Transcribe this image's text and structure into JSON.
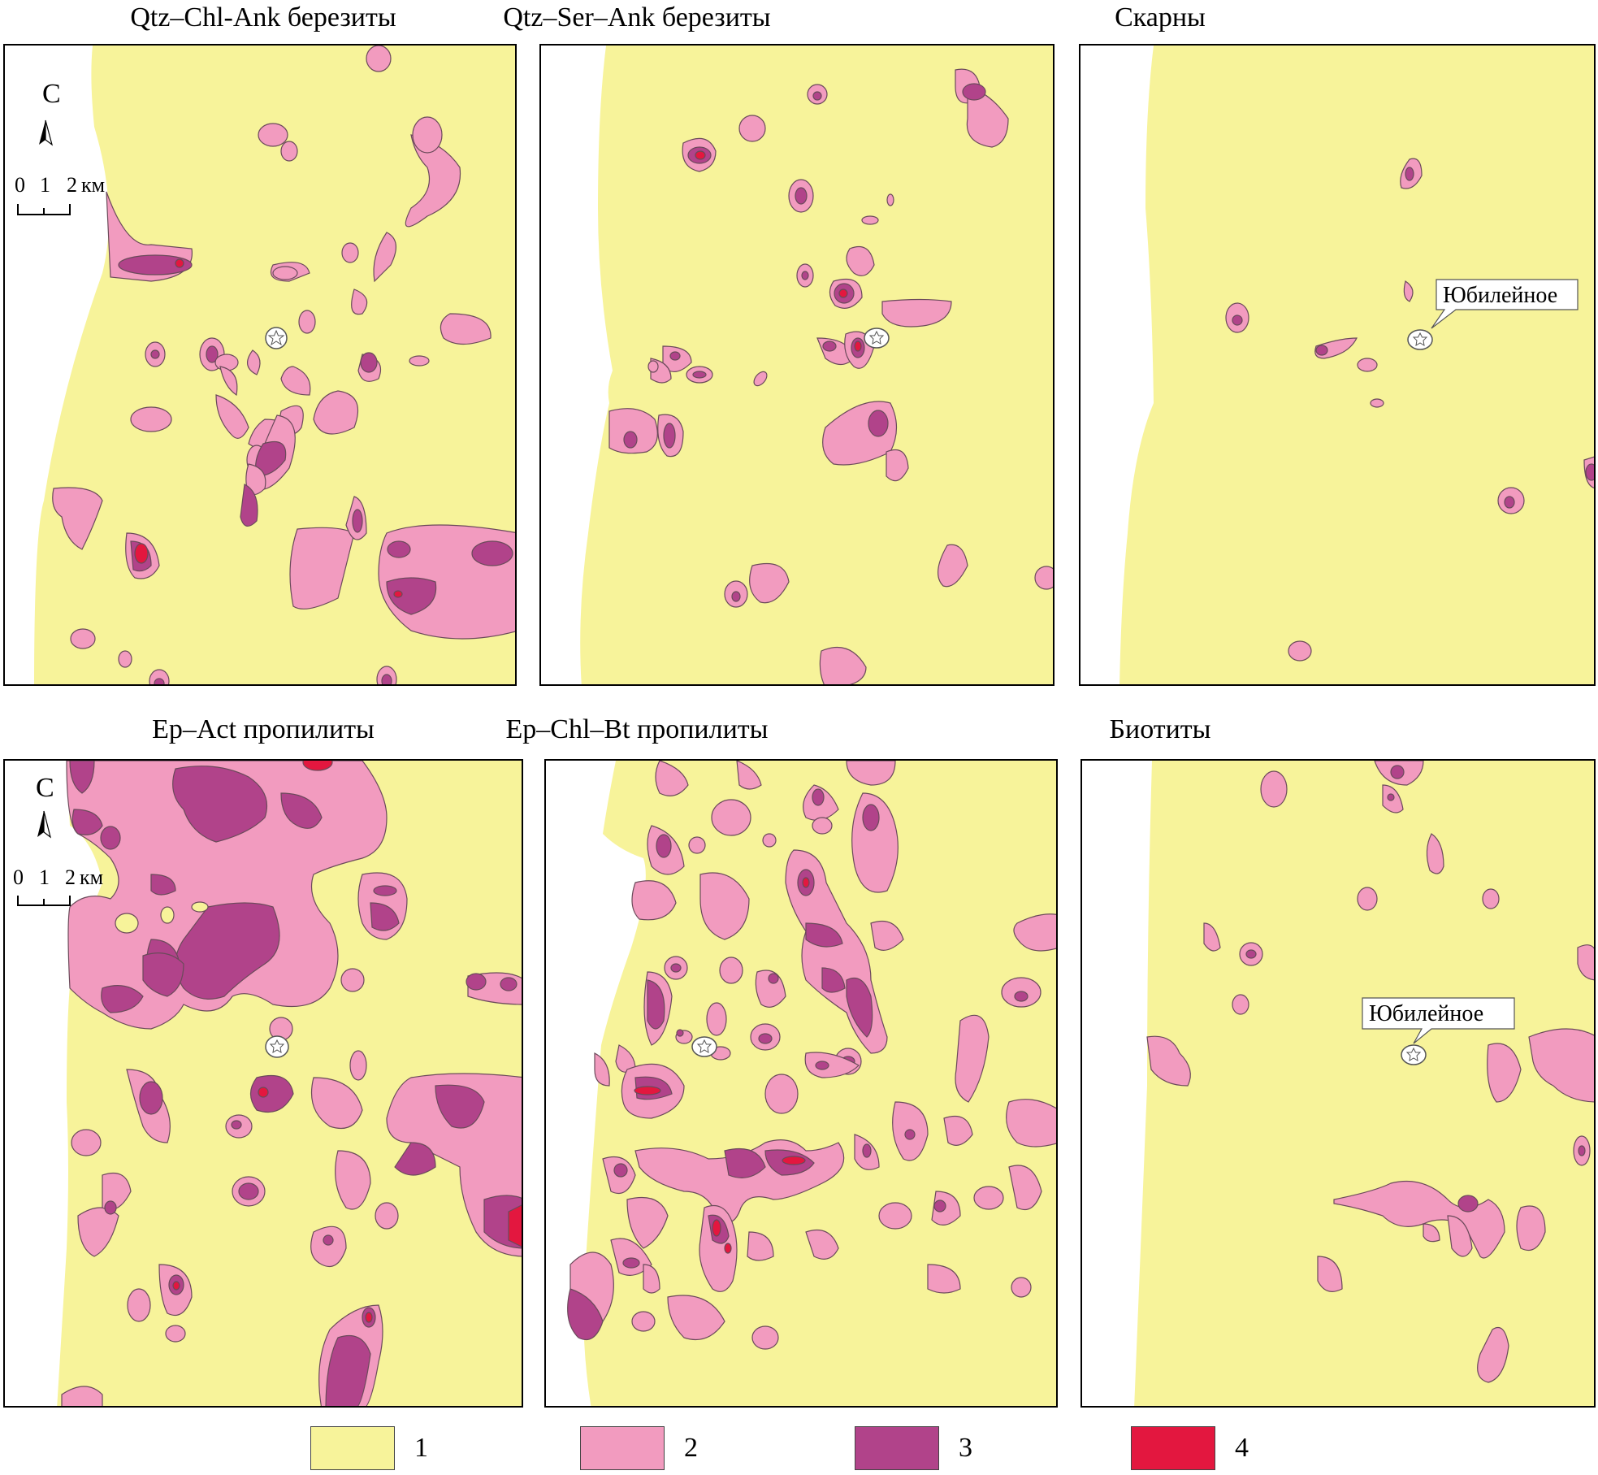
{
  "panels": [
    {
      "title": "Qtz–Chl-Ank березиты"
    },
    {
      "title": "Qtz–Ser–Ank березиты"
    },
    {
      "title": "Скарны"
    },
    {
      "title": "Ep–Act пропилиты"
    },
    {
      "title": "Ep–Chl–Bt пропилиты"
    },
    {
      "title": "Биотиты"
    }
  ],
  "north_label": "С",
  "scale": {
    "ticks": [
      "0",
      "1",
      "2"
    ],
    "unit": "км"
  },
  "deposit_label": "Юбилейное",
  "legend": [
    {
      "label": "1",
      "color": "#f7f39a"
    },
    {
      "label": "2",
      "color": "#f29bbf"
    },
    {
      "label": "3",
      "color": "#b1438a"
    },
    {
      "label": "4",
      "color": "#e3173f"
    }
  ],
  "colors": {
    "class1": "#f7f39a",
    "class2": "#f29bbf",
    "class3": "#b1438a",
    "class4": "#e3173f",
    "outline": "#6b4a5a"
  }
}
